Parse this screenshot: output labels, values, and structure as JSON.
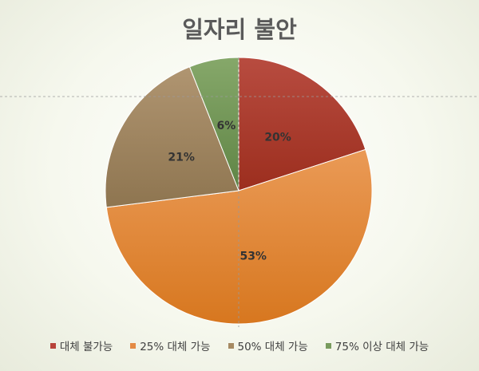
{
  "chart_data": {
    "type": "pie",
    "title": "일자리 불안",
    "categories": [
      "대체 불가능",
      "25% 대체 가능",
      "50% 대체 가능",
      "75% 이상 대체 가능"
    ],
    "values": [
      20,
      53,
      21,
      6
    ],
    "labels": [
      "20%",
      "53%",
      "21%",
      "6%"
    ],
    "colors": [
      "#b8433a",
      "#e48b45",
      "#a68a63",
      "#789b5d"
    ],
    "start_angle_deg": 0,
    "direction": "clockwise",
    "legend": "bottom"
  }
}
